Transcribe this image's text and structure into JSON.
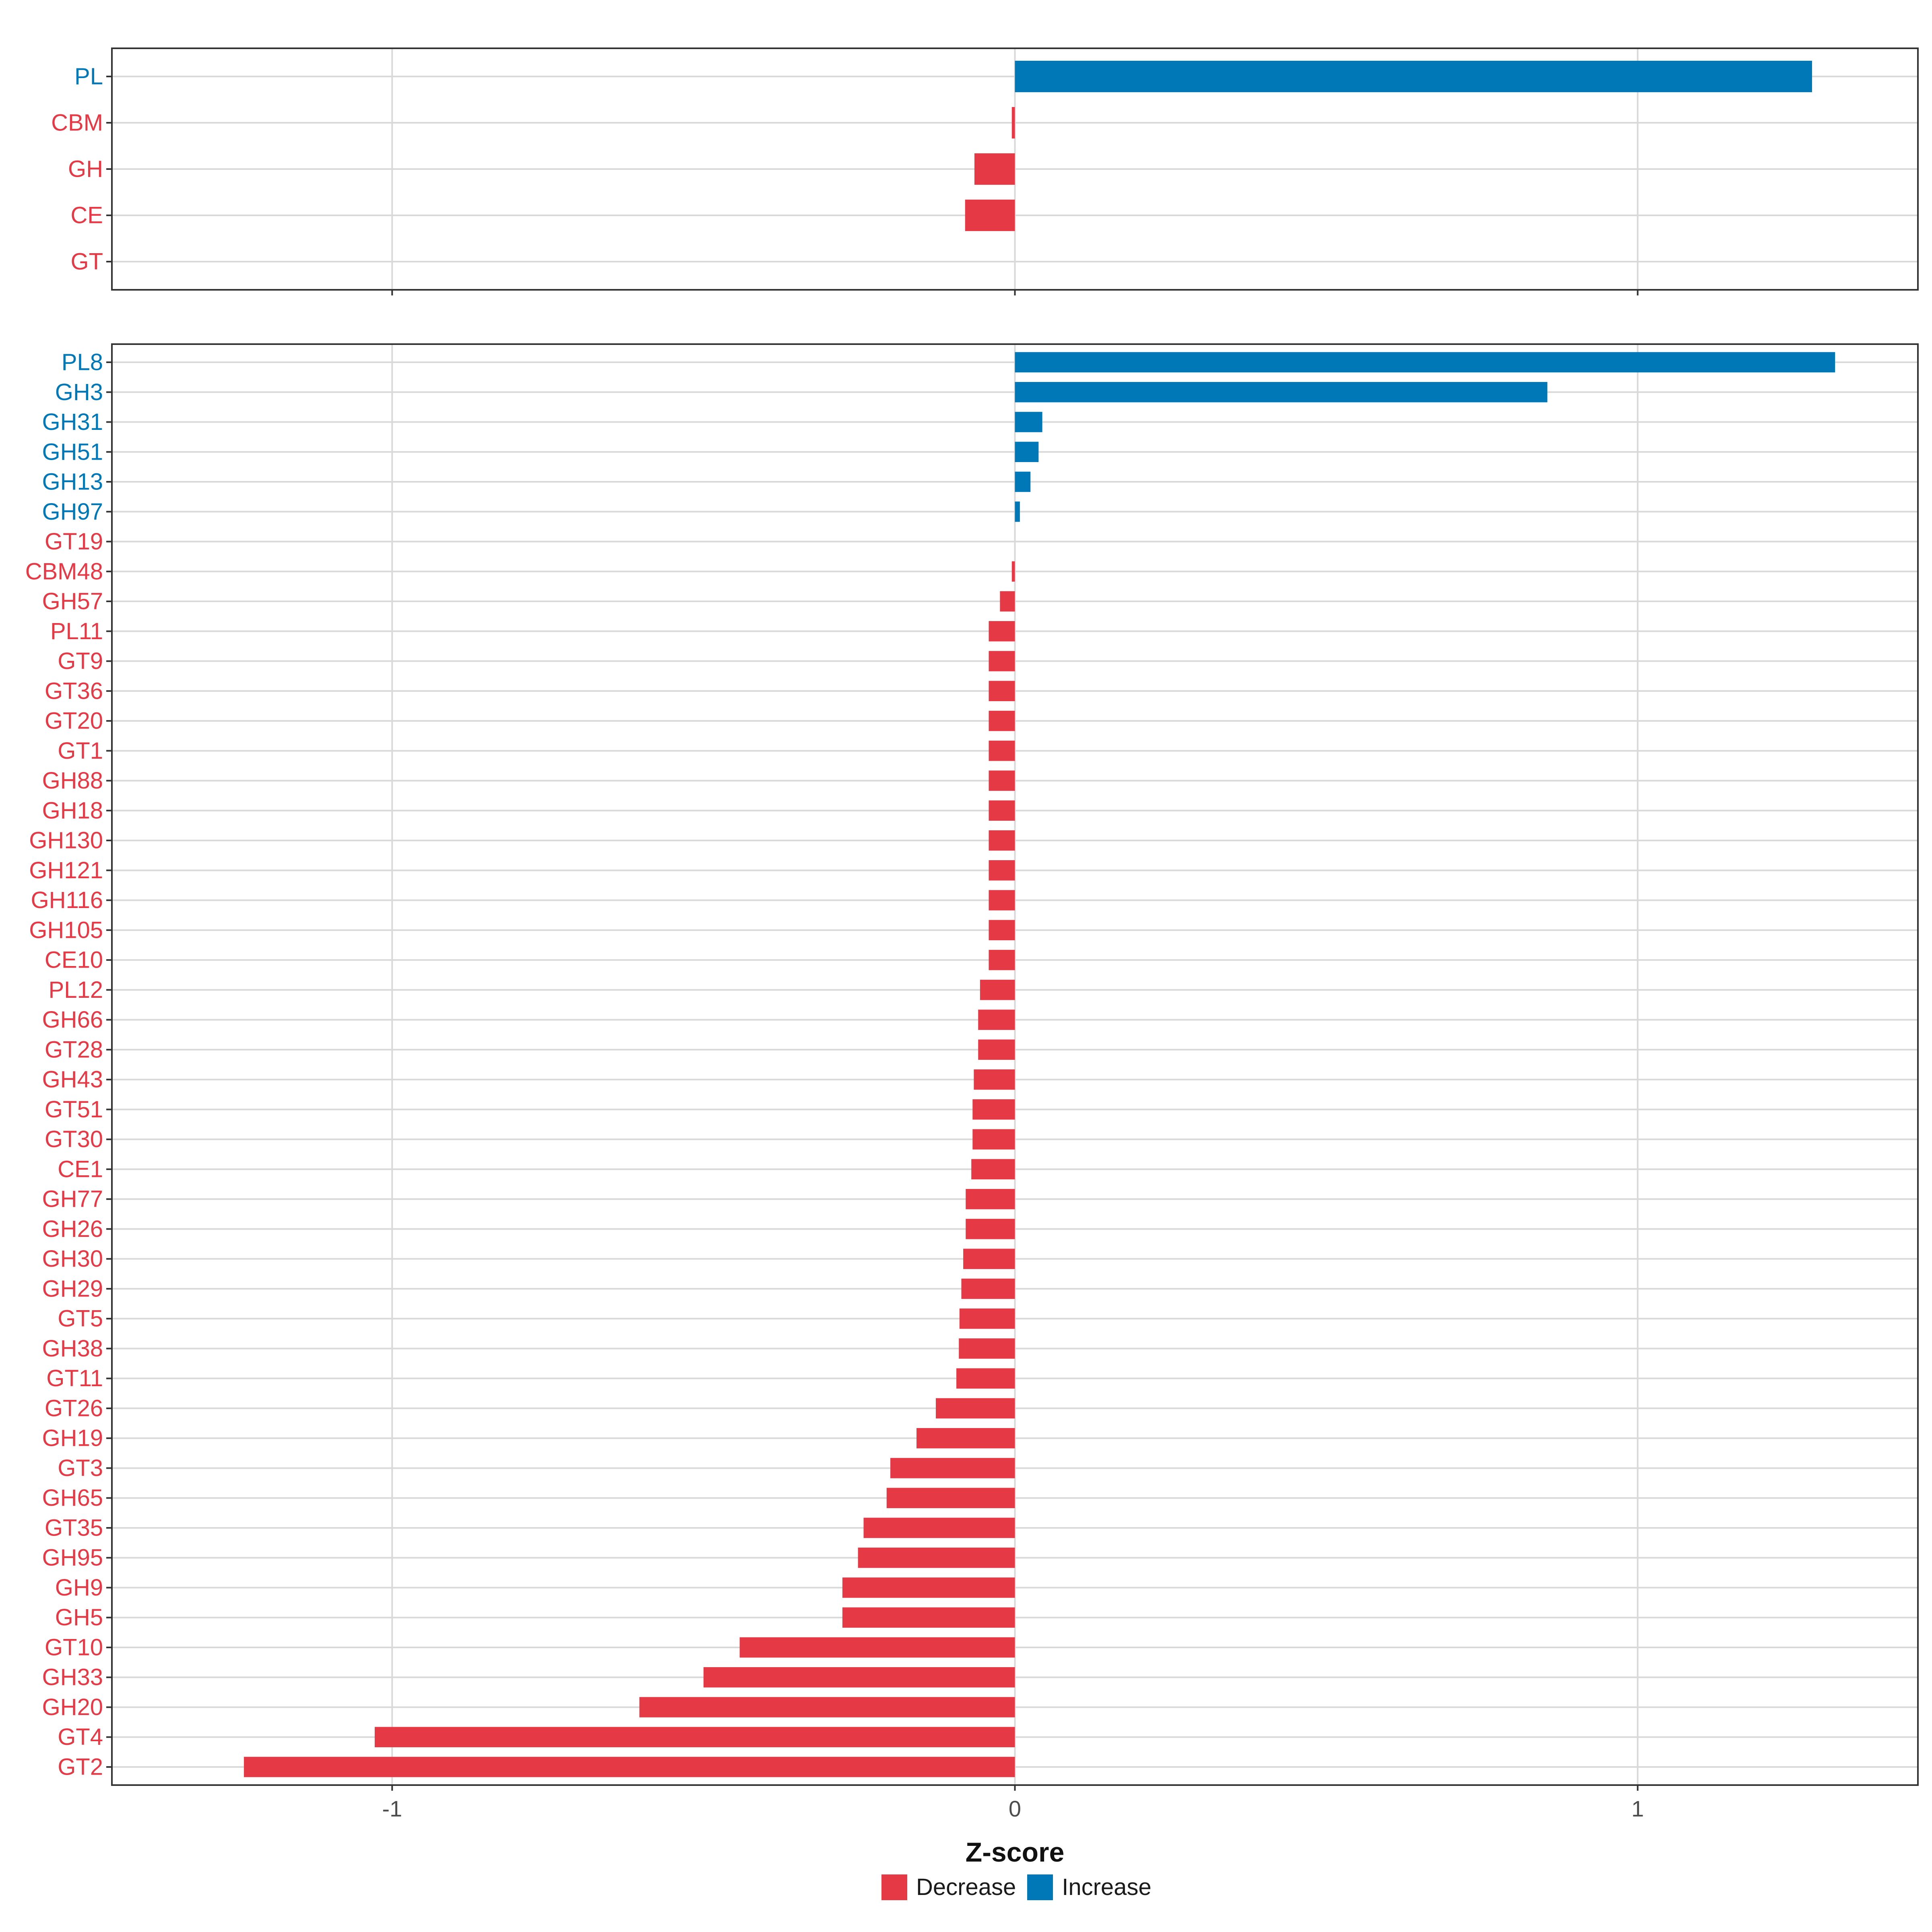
{
  "colors": {
    "decrease": "#E63946",
    "increase": "#0077B6",
    "grid": "#D9D9D9",
    "border": "#333333"
  },
  "chart_data": [
    {
      "type": "bar",
      "orientation": "horizontal",
      "panel": "top",
      "xlim": [
        -1.45,
        1.45
      ],
      "categories": [
        "PL",
        "CBM",
        "GH",
        "CE",
        "GT"
      ],
      "values": [
        1.28,
        -0.005,
        -0.065,
        -0.08,
        0.0
      ],
      "directions": [
        "Increase",
        "Decrease",
        "Decrease",
        "Decrease",
        "Decrease"
      ]
    },
    {
      "type": "bar",
      "orientation": "horizontal",
      "panel": "bottom",
      "xlim": [
        -1.45,
        1.45
      ],
      "xlabel": "Z-score",
      "xticks": [
        -1,
        0,
        1
      ],
      "xtick_labels": [
        "-1",
        "0",
        "1"
      ],
      "categories": [
        "PL8",
        "GH3",
        "GH31",
        "GH51",
        "GH13",
        "GH97",
        "GT19",
        "CBM48",
        "GH57",
        "PL11",
        "GT9",
        "GT36",
        "GT20",
        "GT1",
        "GH88",
        "GH18",
        "GH130",
        "GH121",
        "GH116",
        "GH105",
        "CE10",
        "PL12",
        "GH66",
        "GT28",
        "GH43",
        "GT51",
        "GT30",
        "CE1",
        "GH77",
        "GH26",
        "GH30",
        "GH29",
        "GT5",
        "GH38",
        "GT11",
        "GT26",
        "GH19",
        "GT3",
        "GH65",
        "GT35",
        "GH95",
        "GH9",
        "GH5",
        "GT10",
        "GH33",
        "GH20",
        "GT4",
        "GT2"
      ],
      "values": [
        1.317,
        0.855,
        0.044,
        0.038,
        0.025,
        0.008,
        0.0,
        -0.005,
        -0.024,
        -0.042,
        -0.042,
        -0.042,
        -0.042,
        -0.042,
        -0.042,
        -0.042,
        -0.042,
        -0.042,
        -0.042,
        -0.042,
        -0.042,
        -0.056,
        -0.059,
        -0.059,
        -0.066,
        -0.068,
        -0.068,
        -0.07,
        -0.079,
        -0.079,
        -0.083,
        -0.086,
        -0.089,
        -0.09,
        -0.094,
        -0.127,
        -0.158,
        -0.2,
        -0.206,
        -0.243,
        -0.252,
        -0.277,
        -0.277,
        -0.442,
        -0.5,
        -0.603,
        -1.028,
        -1.238
      ],
      "directions": [
        "Increase",
        "Increase",
        "Increase",
        "Increase",
        "Increase",
        "Increase",
        "Decrease",
        "Decrease",
        "Decrease",
        "Decrease",
        "Decrease",
        "Decrease",
        "Decrease",
        "Decrease",
        "Decrease",
        "Decrease",
        "Decrease",
        "Decrease",
        "Decrease",
        "Decrease",
        "Decrease",
        "Decrease",
        "Decrease",
        "Decrease",
        "Decrease",
        "Decrease",
        "Decrease",
        "Decrease",
        "Decrease",
        "Decrease",
        "Decrease",
        "Decrease",
        "Decrease",
        "Decrease",
        "Decrease",
        "Decrease",
        "Decrease",
        "Decrease",
        "Decrease",
        "Decrease",
        "Decrease",
        "Decrease",
        "Decrease",
        "Decrease",
        "Decrease",
        "Decrease",
        "Decrease",
        "Decrease"
      ]
    }
  ],
  "legend": {
    "items": [
      "Decrease",
      "Increase"
    ]
  }
}
